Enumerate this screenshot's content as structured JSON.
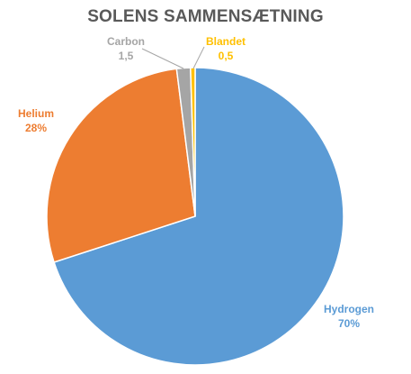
{
  "chart_data": {
    "type": "pie",
    "title": "SOLENS SAMMENSÆTNING",
    "slices": [
      {
        "name": "Hydrogen",
        "value": 70,
        "value_label": "70%",
        "color": "#5B9BD5"
      },
      {
        "name": "Helium",
        "value": 28,
        "value_label": "28%",
        "color": "#ED7D31"
      },
      {
        "name": "Carbon",
        "value": 1.5,
        "value_label": "1,5",
        "color": "#A5A5A5"
      },
      {
        "name": "Blandet",
        "value": 0.5,
        "value_label": "0,5",
        "color": "#FFC000"
      }
    ]
  }
}
